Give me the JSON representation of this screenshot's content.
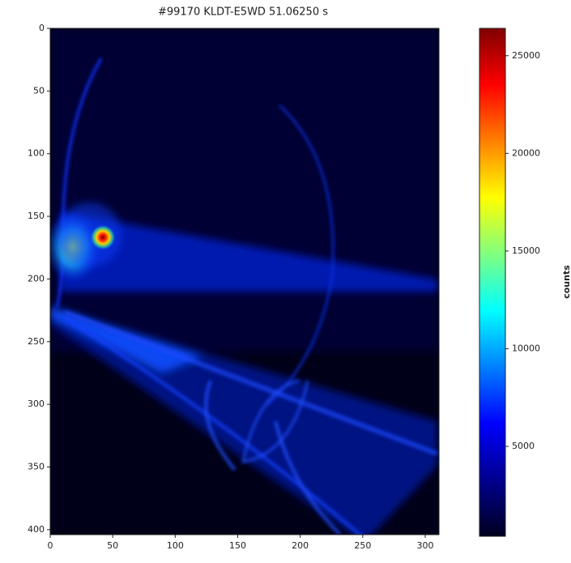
{
  "chart_data": {
    "type": "image",
    "title": "#99170 KLDT-E5WD 51.06250 s",
    "xlim": [
      0,
      311
    ],
    "ylim": [
      404,
      0
    ],
    "xticks": [
      0,
      50,
      100,
      150,
      200,
      250,
      300
    ],
    "yticks": [
      0,
      50,
      100,
      150,
      200,
      250,
      300,
      350,
      400
    ],
    "colorbar": {
      "label": "counts",
      "colormap": "jet",
      "lim": [
        400,
        26400
      ],
      "ticks": [
        5000,
        10000,
        15000,
        20000,
        25000
      ]
    }
  }
}
